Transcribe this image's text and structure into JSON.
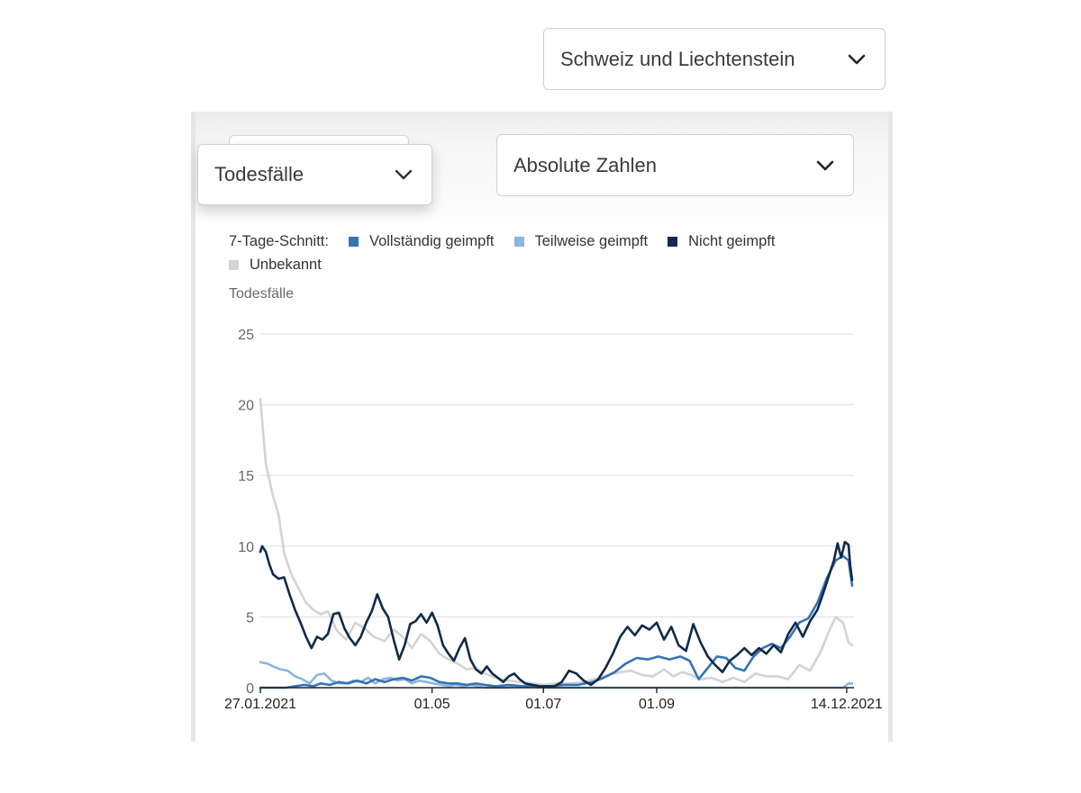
{
  "region_select": {
    "value": "Schweiz und Liechtenstein"
  },
  "metric_select": {
    "value": "Todesfälle"
  },
  "scale_select": {
    "value": "Absolute Zahlen"
  },
  "legend": {
    "label": "7-Tage-Schnitt:",
    "items": [
      {
        "name": "Vollständig geimpft",
        "color": "#3473b5"
      },
      {
        "name": "Teilweise geimpft",
        "color": "#8ab6e0"
      },
      {
        "name": "Nicht geimpft",
        "color": "#0f2a4a"
      },
      {
        "name": "Unbekannt",
        "color": "#d3d3d3"
      }
    ]
  },
  "chart_data": {
    "type": "line",
    "ylabel": "Todesfälle",
    "ylim": [
      0,
      25
    ],
    "yticks": [
      0,
      5,
      10,
      15,
      20,
      25
    ],
    "xlim": [
      "2021-01-27",
      "2021-12-18"
    ],
    "xticks": [
      {
        "date": "2021-01-27",
        "label": "27.01.2021"
      },
      {
        "date": "2021-05-01",
        "label": "01.05"
      },
      {
        "date": "2021-07-01",
        "label": "01.07"
      },
      {
        "date": "2021-09-01",
        "label": "01.09"
      },
      {
        "date": "2021-12-14",
        "label": "14.12.2021"
      }
    ],
    "grid": true,
    "series": [
      {
        "name": "Unbekannt",
        "color": "#d3d3d3",
        "points": [
          [
            "2021-01-27",
            20.4
          ],
          [
            "2021-01-30",
            15.8
          ],
          [
            "2021-02-03",
            13.5
          ],
          [
            "2021-02-06",
            12.2
          ],
          [
            "2021-02-09",
            9.5
          ],
          [
            "2021-02-13",
            8.0
          ],
          [
            "2021-02-17",
            7.0
          ],
          [
            "2021-02-21",
            6.0
          ],
          [
            "2021-02-25",
            5.5
          ],
          [
            "2021-03-01",
            5.2
          ],
          [
            "2021-03-05",
            5.4
          ],
          [
            "2021-03-10",
            4.0
          ],
          [
            "2021-03-15",
            3.4
          ],
          [
            "2021-03-20",
            4.6
          ],
          [
            "2021-03-25",
            4.2
          ],
          [
            "2021-03-30",
            3.6
          ],
          [
            "2021-04-05",
            3.3
          ],
          [
            "2021-04-10",
            4.1
          ],
          [
            "2021-04-15",
            3.6
          ],
          [
            "2021-04-20",
            2.8
          ],
          [
            "2021-04-25",
            3.8
          ],
          [
            "2021-04-30",
            3.3
          ],
          [
            "2021-05-05",
            2.4
          ],
          [
            "2021-05-10",
            2.0
          ],
          [
            "2021-05-15",
            1.7
          ],
          [
            "2021-05-20",
            1.3
          ],
          [
            "2021-05-25",
            1.4
          ],
          [
            "2021-05-30",
            1.0
          ],
          [
            "2021-06-05",
            0.7
          ],
          [
            "2021-06-12",
            0.5
          ],
          [
            "2021-06-18",
            0.4
          ],
          [
            "2021-06-25",
            0.3
          ],
          [
            "2021-07-01",
            0.2
          ],
          [
            "2021-07-08",
            0.3
          ],
          [
            "2021-07-15",
            0.3
          ],
          [
            "2021-07-22",
            0.4
          ],
          [
            "2021-07-29",
            0.6
          ],
          [
            "2021-08-05",
            0.9
          ],
          [
            "2021-08-12",
            1.1
          ],
          [
            "2021-08-18",
            1.2
          ],
          [
            "2021-08-24",
            0.9
          ],
          [
            "2021-08-30",
            0.8
          ],
          [
            "2021-09-05",
            1.3
          ],
          [
            "2021-09-10",
            0.8
          ],
          [
            "2021-09-15",
            1.1
          ],
          [
            "2021-09-20",
            0.9
          ],
          [
            "2021-09-25",
            0.6
          ],
          [
            "2021-10-01",
            0.7
          ],
          [
            "2021-10-07",
            0.4
          ],
          [
            "2021-10-13",
            0.7
          ],
          [
            "2021-10-19",
            0.4
          ],
          [
            "2021-10-25",
            1.0
          ],
          [
            "2021-10-31",
            0.8
          ],
          [
            "2021-11-06",
            0.8
          ],
          [
            "2021-11-12",
            0.6
          ],
          [
            "2021-11-18",
            1.6
          ],
          [
            "2021-11-24",
            1.2
          ],
          [
            "2021-11-30",
            2.6
          ],
          [
            "2021-12-04",
            3.9
          ],
          [
            "2021-12-08",
            5.0
          ],
          [
            "2021-12-12",
            4.6
          ],
          [
            "2021-12-15",
            3.2
          ],
          [
            "2021-12-17",
            3.0
          ]
        ]
      },
      {
        "name": "Teilweise geimpft",
        "color": "#8ab6e0",
        "points": [
          [
            "2021-01-27",
            1.8
          ],
          [
            "2021-01-31",
            1.7
          ],
          [
            "2021-02-03",
            1.5
          ],
          [
            "2021-02-07",
            1.3
          ],
          [
            "2021-02-11",
            1.2
          ],
          [
            "2021-02-15",
            0.8
          ],
          [
            "2021-02-19",
            0.6
          ],
          [
            "2021-02-23",
            0.3
          ],
          [
            "2021-02-27",
            0.9
          ],
          [
            "2021-03-03",
            1.0
          ],
          [
            "2021-03-07",
            0.5
          ],
          [
            "2021-03-11",
            0.3
          ],
          [
            "2021-03-15",
            0.3
          ],
          [
            "2021-03-19",
            0.5
          ],
          [
            "2021-03-23",
            0.4
          ],
          [
            "2021-03-27",
            0.7
          ],
          [
            "2021-03-31",
            0.3
          ],
          [
            "2021-04-04",
            0.6
          ],
          [
            "2021-04-08",
            0.7
          ],
          [
            "2021-04-12",
            0.5
          ],
          [
            "2021-04-16",
            0.6
          ],
          [
            "2021-04-20",
            0.3
          ],
          [
            "2021-04-24",
            0.5
          ],
          [
            "2021-04-28",
            0.4
          ],
          [
            "2021-05-02",
            0.3
          ],
          [
            "2021-05-06",
            0.2
          ],
          [
            "2021-05-10",
            0.1
          ],
          [
            "2021-05-14",
            0.2
          ],
          [
            "2021-05-18",
            0.1
          ],
          [
            "2021-05-22",
            0.2
          ],
          [
            "2021-05-26",
            0.1
          ],
          [
            "2021-05-30",
            0.0
          ],
          [
            "2021-06-10",
            0.0
          ],
          [
            "2021-06-20",
            0.1
          ],
          [
            "2021-07-01",
            0.0
          ],
          [
            "2021-08-01",
            0.0
          ],
          [
            "2021-08-20",
            0.0
          ],
          [
            "2021-09-10",
            0.0
          ],
          [
            "2021-10-01",
            0.0
          ],
          [
            "2021-11-01",
            0.0
          ],
          [
            "2021-12-01",
            0.0
          ],
          [
            "2021-12-12",
            0.0
          ],
          [
            "2021-12-15",
            0.3
          ],
          [
            "2021-12-17",
            0.3
          ]
        ]
      },
      {
        "name": "Vollständig geimpft",
        "color": "#3473b5",
        "points": [
          [
            "2021-01-27",
            0.0
          ],
          [
            "2021-02-10",
            0.0
          ],
          [
            "2021-02-15",
            0.1
          ],
          [
            "2021-02-20",
            0.2
          ],
          [
            "2021-02-25",
            0.1
          ],
          [
            "2021-03-01",
            0.3
          ],
          [
            "2021-03-06",
            0.2
          ],
          [
            "2021-03-11",
            0.4
          ],
          [
            "2021-03-16",
            0.3
          ],
          [
            "2021-03-21",
            0.5
          ],
          [
            "2021-03-26",
            0.3
          ],
          [
            "2021-03-31",
            0.6
          ],
          [
            "2021-04-05",
            0.4
          ],
          [
            "2021-04-10",
            0.6
          ],
          [
            "2021-04-15",
            0.7
          ],
          [
            "2021-04-20",
            0.5
          ],
          [
            "2021-04-25",
            0.8
          ],
          [
            "2021-04-30",
            0.7
          ],
          [
            "2021-05-05",
            0.4
          ],
          [
            "2021-05-10",
            0.3
          ],
          [
            "2021-05-15",
            0.3
          ],
          [
            "2021-05-20",
            0.2
          ],
          [
            "2021-05-25",
            0.3
          ],
          [
            "2021-05-30",
            0.2
          ],
          [
            "2021-06-05",
            0.1
          ],
          [
            "2021-06-12",
            0.2
          ],
          [
            "2021-06-20",
            0.1
          ],
          [
            "2021-06-28",
            0.1
          ],
          [
            "2021-07-05",
            0.1
          ],
          [
            "2021-07-12",
            0.2
          ],
          [
            "2021-07-20",
            0.2
          ],
          [
            "2021-07-28",
            0.4
          ],
          [
            "2021-08-03",
            0.7
          ],
          [
            "2021-08-09",
            1.1
          ],
          [
            "2021-08-15",
            1.7
          ],
          [
            "2021-08-21",
            2.1
          ],
          [
            "2021-08-27",
            2.0
          ],
          [
            "2021-09-02",
            2.2
          ],
          [
            "2021-09-08",
            2.0
          ],
          [
            "2021-09-14",
            2.2
          ],
          [
            "2021-09-19",
            1.9
          ],
          [
            "2021-09-24",
            0.6
          ],
          [
            "2021-09-29",
            1.4
          ],
          [
            "2021-10-04",
            2.2
          ],
          [
            "2021-10-09",
            2.1
          ],
          [
            "2021-10-14",
            1.4
          ],
          [
            "2021-10-19",
            1.2
          ],
          [
            "2021-10-24",
            2.2
          ],
          [
            "2021-10-29",
            2.8
          ],
          [
            "2021-11-03",
            3.1
          ],
          [
            "2021-11-08",
            2.8
          ],
          [
            "2021-11-13",
            3.6
          ],
          [
            "2021-11-18",
            4.6
          ],
          [
            "2021-11-23",
            4.9
          ],
          [
            "2021-11-28",
            6.0
          ],
          [
            "2021-12-03",
            7.7
          ],
          [
            "2021-12-08",
            9.0
          ],
          [
            "2021-12-12",
            9.3
          ],
          [
            "2021-12-15",
            9.0
          ],
          [
            "2021-12-17",
            7.2
          ]
        ]
      },
      {
        "name": "Nicht geimpft",
        "color": "#0f2a4a",
        "points": [
          [
            "2021-01-27",
            9.6
          ],
          [
            "2021-01-28",
            10.0
          ],
          [
            "2021-01-30",
            9.6
          ],
          [
            "2021-02-01",
            8.7
          ],
          [
            "2021-02-03",
            8.0
          ],
          [
            "2021-02-06",
            7.7
          ],
          [
            "2021-02-09",
            7.8
          ],
          [
            "2021-02-12",
            6.6
          ],
          [
            "2021-02-15",
            5.5
          ],
          [
            "2021-02-18",
            4.6
          ],
          [
            "2021-02-21",
            3.6
          ],
          [
            "2021-02-24",
            2.8
          ],
          [
            "2021-02-27",
            3.6
          ],
          [
            "2021-03-02",
            3.4
          ],
          [
            "2021-03-05",
            3.8
          ],
          [
            "2021-03-08",
            5.2
          ],
          [
            "2021-03-11",
            5.3
          ],
          [
            "2021-03-14",
            4.2
          ],
          [
            "2021-03-17",
            3.5
          ],
          [
            "2021-03-20",
            3.0
          ],
          [
            "2021-03-23",
            3.6
          ],
          [
            "2021-03-26",
            4.6
          ],
          [
            "2021-03-29",
            5.4
          ],
          [
            "2021-04-01",
            6.6
          ],
          [
            "2021-04-04",
            5.6
          ],
          [
            "2021-04-07",
            5.0
          ],
          [
            "2021-04-10",
            3.4
          ],
          [
            "2021-04-13",
            2.0
          ],
          [
            "2021-04-16",
            3.0
          ],
          [
            "2021-04-19",
            4.5
          ],
          [
            "2021-04-22",
            4.7
          ],
          [
            "2021-04-25",
            5.2
          ],
          [
            "2021-04-28",
            4.6
          ],
          [
            "2021-05-01",
            5.3
          ],
          [
            "2021-05-04",
            4.4
          ],
          [
            "2021-05-07",
            3.0
          ],
          [
            "2021-05-10",
            2.4
          ],
          [
            "2021-05-13",
            1.9
          ],
          [
            "2021-05-16",
            2.8
          ],
          [
            "2021-05-19",
            3.5
          ],
          [
            "2021-05-22",
            2.0
          ],
          [
            "2021-05-25",
            1.3
          ],
          [
            "2021-05-28",
            1.0
          ],
          [
            "2021-05-31",
            1.5
          ],
          [
            "2021-06-03",
            1.0
          ],
          [
            "2021-06-06",
            0.7
          ],
          [
            "2021-06-09",
            0.4
          ],
          [
            "2021-06-12",
            0.8
          ],
          [
            "2021-06-15",
            1.0
          ],
          [
            "2021-06-18",
            0.6
          ],
          [
            "2021-06-21",
            0.3
          ],
          [
            "2021-06-25",
            0.2
          ],
          [
            "2021-06-29",
            0.1
          ],
          [
            "2021-07-03",
            0.1
          ],
          [
            "2021-07-07",
            0.1
          ],
          [
            "2021-07-11",
            0.4
          ],
          [
            "2021-07-15",
            1.2
          ],
          [
            "2021-07-19",
            1.0
          ],
          [
            "2021-07-23",
            0.5
          ],
          [
            "2021-07-27",
            0.2
          ],
          [
            "2021-07-31",
            0.6
          ],
          [
            "2021-08-04",
            1.4
          ],
          [
            "2021-08-08",
            2.4
          ],
          [
            "2021-08-12",
            3.6
          ],
          [
            "2021-08-16",
            4.3
          ],
          [
            "2021-08-20",
            3.7
          ],
          [
            "2021-08-24",
            4.4
          ],
          [
            "2021-08-28",
            4.1
          ],
          [
            "2021-09-01",
            4.6
          ],
          [
            "2021-09-05",
            3.4
          ],
          [
            "2021-09-09",
            4.3
          ],
          [
            "2021-09-13",
            3.0
          ],
          [
            "2021-09-17",
            2.6
          ],
          [
            "2021-09-21",
            4.5
          ],
          [
            "2021-09-25",
            3.2
          ],
          [
            "2021-09-29",
            2.2
          ],
          [
            "2021-10-03",
            1.6
          ],
          [
            "2021-10-07",
            1.1
          ],
          [
            "2021-10-11",
            1.9
          ],
          [
            "2021-10-15",
            2.3
          ],
          [
            "2021-10-19",
            2.8
          ],
          [
            "2021-10-23",
            2.3
          ],
          [
            "2021-10-27",
            2.8
          ],
          [
            "2021-10-31",
            2.4
          ],
          [
            "2021-11-04",
            3.0
          ],
          [
            "2021-11-08",
            2.5
          ],
          [
            "2021-11-12",
            3.8
          ],
          [
            "2021-11-16",
            4.6
          ],
          [
            "2021-11-20",
            3.6
          ],
          [
            "2021-11-24",
            4.7
          ],
          [
            "2021-11-28",
            5.5
          ],
          [
            "2021-12-01",
            6.6
          ],
          [
            "2021-12-04",
            7.8
          ],
          [
            "2021-12-07",
            9.0
          ],
          [
            "2021-12-09",
            10.2
          ],
          [
            "2021-12-11",
            9.2
          ],
          [
            "2021-12-13",
            10.3
          ],
          [
            "2021-12-15",
            10.1
          ],
          [
            "2021-12-16",
            8.6
          ],
          [
            "2021-12-17",
            7.6
          ]
        ]
      }
    ]
  }
}
